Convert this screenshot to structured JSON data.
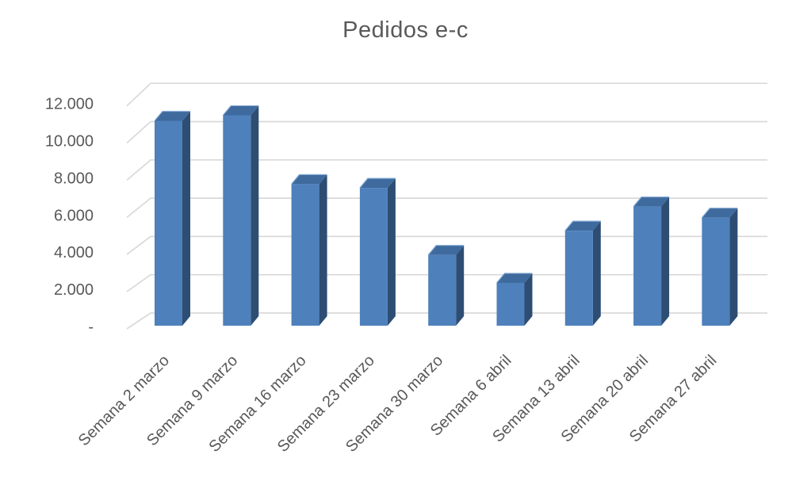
{
  "chart_data": {
    "type": "bar",
    "variant": "3d-clustered-column",
    "title": "Pedidos e-c",
    "categories": [
      "Semana 2 marzo",
      "Semana 9 marzo",
      "Semana 16 marzo",
      "Semana 23 marzo",
      "Semana 30 marzo",
      "Semana 6 abril",
      "Semana 13 abril",
      "Semana 20 abril",
      "Semana 27 abril"
    ],
    "values": [
      11000,
      11300,
      7600,
      7400,
      3800,
      2300,
      5100,
      6400,
      5800
    ],
    "xlabel": "",
    "ylabel": "",
    "ylim": [
      0,
      12000
    ],
    "ytick_step": 2000,
    "ytick_labels": [
      "-",
      "2.000",
      "4.000",
      "6.000",
      "8.000",
      "10.000",
      "12.000"
    ],
    "grid": true,
    "legend": "none",
    "colors": {
      "bar_front": "#4E80BC",
      "bar_top": "#3E6A9E",
      "bar_top_highlight": "#84A9D3",
      "bar_side": "#2D4D73",
      "gridline": "#D9D9D9",
      "axis_text": "#595959",
      "title_text": "#595959",
      "background": "#FFFFFF"
    }
  }
}
